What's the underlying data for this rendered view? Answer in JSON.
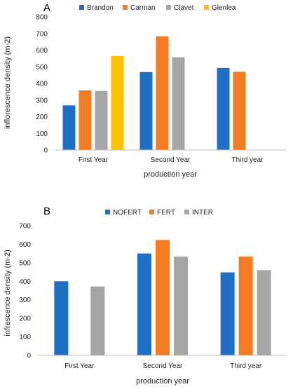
{
  "chart_data": [
    {
      "type": "bar",
      "panel_label": "A",
      "categories": [
        "First Year",
        "Second Year",
        "Third year"
      ],
      "series": [
        {
          "name": "Brandon",
          "color": "#1f6fc6",
          "values": [
            268,
            468,
            493
          ]
        },
        {
          "name": "Carman",
          "color": "#f47b22",
          "values": [
            358,
            683,
            470
          ]
        },
        {
          "name": "Clavet",
          "color": "#a5a5a5",
          "values": [
            355,
            557,
            null
          ]
        },
        {
          "name": "Glenlea",
          "color": "#ffc000",
          "values": [
            565,
            null,
            null
          ]
        }
      ],
      "xlabel": "production year",
      "ylabel": "inflorescence density (m-2)",
      "ylim": [
        0,
        800
      ],
      "yticks": [
        "0",
        "100",
        "200",
        "300",
        "400",
        "500",
        "600",
        "700",
        "800"
      ],
      "legend_position": "top",
      "grid": false
    },
    {
      "type": "bar",
      "panel_label": "B",
      "categories": [
        "First Year",
        "Second Year",
        "Third year"
      ],
      "series": [
        {
          "name": "NOFERT",
          "color": "#1f6fc6",
          "values": [
            400,
            550,
            448
          ]
        },
        {
          "name": "FERT",
          "color": "#f47b22",
          "values": [
            null,
            623,
            533
          ]
        },
        {
          "name": "INTER",
          "color": "#a5a5a5",
          "values": [
            372,
            533,
            460
          ]
        }
      ],
      "xlabel": "production year",
      "ylabel": "infrescence density (m-2)",
      "ylim": [
        0,
        700
      ],
      "yticks": [
        "0",
        "100",
        "200",
        "300",
        "400",
        "500",
        "600",
        "700"
      ],
      "legend_position": "top",
      "grid": false
    }
  ]
}
